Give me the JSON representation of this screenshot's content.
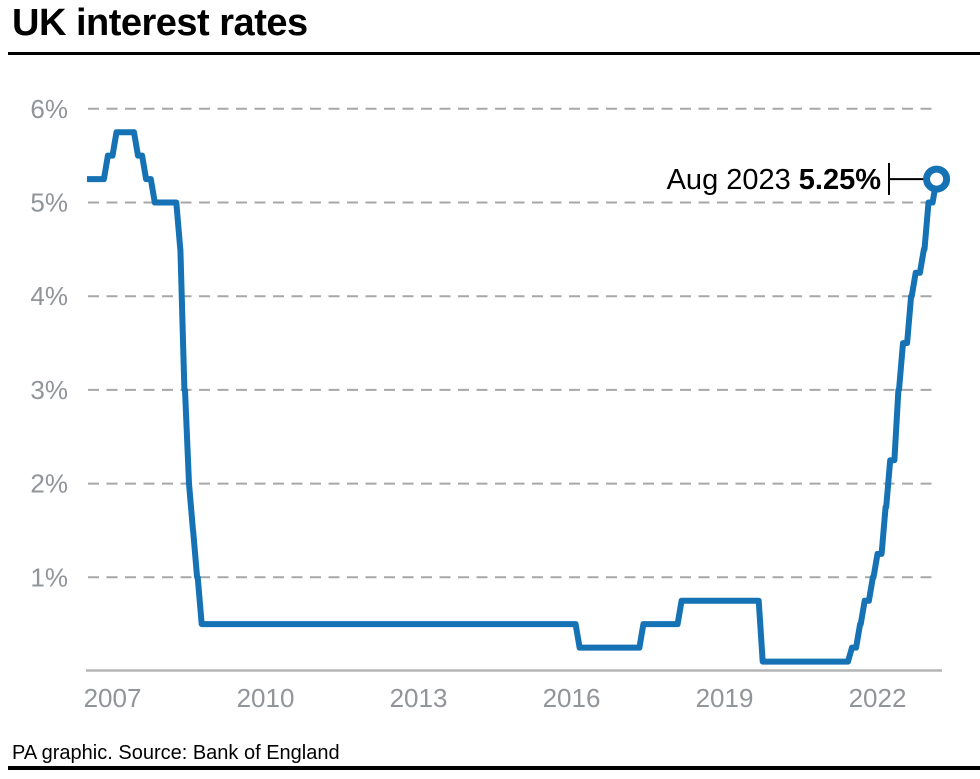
{
  "header": {
    "title": "UK interest rates"
  },
  "footer": {
    "credit": "PA graphic. Source: Bank of England"
  },
  "annotation": {
    "label": "Aug 2023",
    "value": "5.25%"
  },
  "colors": {
    "line": "#1572b4",
    "grid": "#a7a7a7",
    "axis_text": "#919499",
    "axis_line": "#b5b5b5",
    "annotation_text": "#000000",
    "marker_fill": "#ffffff",
    "rule": "#000000"
  },
  "chart_data": {
    "type": "line",
    "title": "UK interest rates",
    "xlabel": "",
    "ylabel": "",
    "x_tick_labels": [
      "2007",
      "2010",
      "2013",
      "2016",
      "2019",
      "2022"
    ],
    "y_tick_labels": [
      "6%",
      "5%",
      "4%",
      "3%",
      "2%",
      "1%"
    ],
    "y_tick_values": [
      6,
      5,
      4,
      3,
      2,
      1
    ],
    "xlim": [
      2007,
      2023.8
    ],
    "ylim": [
      0,
      6.4
    ],
    "grid": "horizontal-dashed",
    "line_style": "step-after",
    "legend": "none",
    "series": [
      {
        "name": "UK interest rate",
        "points": [
          {
            "date": "Jan 2007",
            "t": 2007.04,
            "rate": 5.25
          },
          {
            "date": "May 2007",
            "t": 2007.37,
            "rate": 5.5
          },
          {
            "date": "Jul 2007",
            "t": 2007.54,
            "rate": 5.75
          },
          {
            "date": "Dec 2007",
            "t": 2007.96,
            "rate": 5.5
          },
          {
            "date": "Feb 2008",
            "t": 2008.12,
            "rate": 5.25
          },
          {
            "date": "Apr 2008",
            "t": 2008.29,
            "rate": 5.0
          },
          {
            "date": "Oct 2008",
            "t": 2008.79,
            "rate": 4.5
          },
          {
            "date": "Nov 2008",
            "t": 2008.87,
            "rate": 3.0
          },
          {
            "date": "Dec 2008",
            "t": 2008.96,
            "rate": 2.0
          },
          {
            "date": "Jan 2009",
            "t": 2009.04,
            "rate": 1.5
          },
          {
            "date": "Feb 2009",
            "t": 2009.12,
            "rate": 1.0
          },
          {
            "date": "Mar 2009",
            "t": 2009.21,
            "rate": 0.5
          },
          {
            "date": "Aug 2016",
            "t": 2016.62,
            "rate": 0.25
          },
          {
            "date": "Nov 2017",
            "t": 2017.87,
            "rate": 0.5
          },
          {
            "date": "Aug 2018",
            "t": 2018.62,
            "rate": 0.75
          },
          {
            "date": "Mar 2020",
            "t": 2020.21,
            "rate": 0.1
          },
          {
            "date": "Dec 2021",
            "t": 2021.96,
            "rate": 0.25
          },
          {
            "date": "Feb 2022",
            "t": 2022.12,
            "rate": 0.5
          },
          {
            "date": "Mar 2022",
            "t": 2022.21,
            "rate": 0.75
          },
          {
            "date": "May 2022",
            "t": 2022.37,
            "rate": 1.0
          },
          {
            "date": "Jun 2022",
            "t": 2022.46,
            "rate": 1.25
          },
          {
            "date": "Aug 2022",
            "t": 2022.62,
            "rate": 1.75
          },
          {
            "date": "Sep 2022",
            "t": 2022.71,
            "rate": 2.25
          },
          {
            "date": "Nov 2022",
            "t": 2022.87,
            "rate": 3.0
          },
          {
            "date": "Dec 2022",
            "t": 2022.96,
            "rate": 3.5
          },
          {
            "date": "Feb 2023",
            "t": 2023.12,
            "rate": 4.0
          },
          {
            "date": "Mar 2023",
            "t": 2023.21,
            "rate": 4.25
          },
          {
            "date": "May 2023",
            "t": 2023.37,
            "rate": 4.5
          },
          {
            "date": "Jun 2023",
            "t": 2023.46,
            "rate": 5.0
          },
          {
            "date": "Aug 2023",
            "t": 2023.62,
            "rate": 5.25
          }
        ]
      }
    ],
    "end_annotation": {
      "label": "Aug 2023",
      "value_text": "5.25%",
      "t": 2023.62,
      "rate": 5.25
    }
  }
}
